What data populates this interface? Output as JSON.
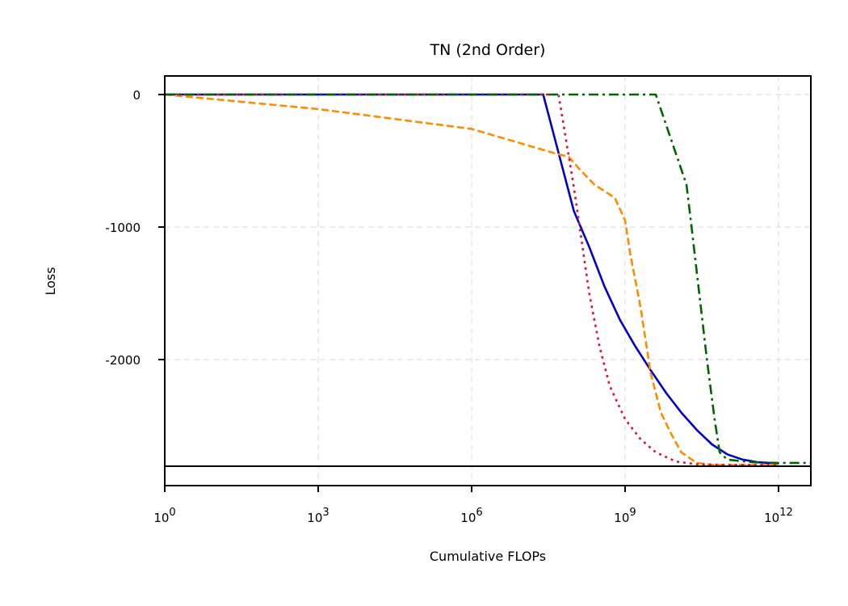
{
  "chart_data": {
    "type": "line",
    "title": "TN (2nd Order)",
    "xlabel": "Cumulative FLOPs",
    "ylabel": "Loss",
    "xscale": "log",
    "xlim": [
      1,
      4300000000000.0
    ],
    "ylim": [
      -2950,
      140
    ],
    "x_ticks": [
      {
        "value": 1,
        "base": "10",
        "exp": "0"
      },
      {
        "value": 1000,
        "base": "10",
        "exp": "3"
      },
      {
        "value": 1000000,
        "base": "10",
        "exp": "6"
      },
      {
        "value": 1000000000,
        "base": "10",
        "exp": "9"
      },
      {
        "value": 1000000000000,
        "base": "10",
        "exp": "12"
      }
    ],
    "y_ticks": [
      {
        "value": 0,
        "label": "0"
      },
      {
        "value": -1000,
        "label": "-1000"
      },
      {
        "value": -2000,
        "label": "-2000"
      }
    ],
    "grid": true,
    "legend": null,
    "reference_line": {
      "y": -2805,
      "color": "#000000",
      "style": "solid"
    },
    "series": [
      {
        "name": "blue-solid",
        "color": "#0000cd",
        "style": "solid",
        "points": [
          [
            0,
            0
          ],
          [
            7.4,
            0
          ],
          [
            8.0,
            -880
          ],
          [
            8.3,
            -1150
          ],
          [
            8.6,
            -1450
          ],
          [
            8.9,
            -1700
          ],
          [
            9.2,
            -1900
          ],
          [
            9.5,
            -2080
          ],
          [
            9.8,
            -2250
          ],
          [
            10.1,
            -2400
          ],
          [
            10.4,
            -2530
          ],
          [
            10.7,
            -2640
          ],
          [
            11.0,
            -2715
          ],
          [
            11.3,
            -2755
          ],
          [
            11.6,
            -2775
          ],
          [
            12.0,
            -2785
          ]
        ]
      },
      {
        "name": "orange-dashed",
        "color": "#ff8c00",
        "style": "dashed",
        "points": [
          [
            0,
            0
          ],
          [
            3,
            -110
          ],
          [
            6,
            -260
          ],
          [
            7.6,
            -440
          ],
          [
            7.9,
            -470
          ],
          [
            8.1,
            -560
          ],
          [
            8.4,
            -680
          ],
          [
            8.8,
            -780
          ],
          [
            9.0,
            -950
          ],
          [
            9.1,
            -1200
          ],
          [
            9.3,
            -1600
          ],
          [
            9.5,
            -2100
          ],
          [
            9.7,
            -2400
          ],
          [
            9.9,
            -2560
          ],
          [
            10.1,
            -2700
          ],
          [
            10.4,
            -2780
          ],
          [
            10.7,
            -2795
          ],
          [
            12.0,
            -2795
          ]
        ]
      },
      {
        "name": "red-dotted",
        "color": "#dc143c",
        "style": "dotted",
        "points": [
          [
            0,
            0
          ],
          [
            7.7,
            0
          ],
          [
            7.85,
            -350
          ],
          [
            8.0,
            -700
          ],
          [
            8.15,
            -1100
          ],
          [
            8.3,
            -1500
          ],
          [
            8.5,
            -1900
          ],
          [
            8.7,
            -2200
          ],
          [
            9.0,
            -2450
          ],
          [
            9.3,
            -2600
          ],
          [
            9.6,
            -2700
          ],
          [
            10.0,
            -2770
          ],
          [
            10.4,
            -2790
          ],
          [
            11.0,
            -2795
          ],
          [
            12.0,
            -2795
          ]
        ]
      },
      {
        "name": "green-dashdot",
        "color": "#006400",
        "style": "dashdot",
        "points": [
          [
            0,
            0
          ],
          [
            7.5,
            0
          ],
          [
            9.6,
            0
          ],
          [
            10.2,
            -680
          ],
          [
            10.3,
            -1000
          ],
          [
            10.45,
            -1500
          ],
          [
            10.6,
            -2000
          ],
          [
            10.75,
            -2450
          ],
          [
            10.85,
            -2700
          ],
          [
            11.0,
            -2755
          ],
          [
            11.5,
            -2775
          ],
          [
            12.0,
            -2780
          ],
          [
            12.63,
            -2780
          ]
        ]
      }
    ]
  }
}
